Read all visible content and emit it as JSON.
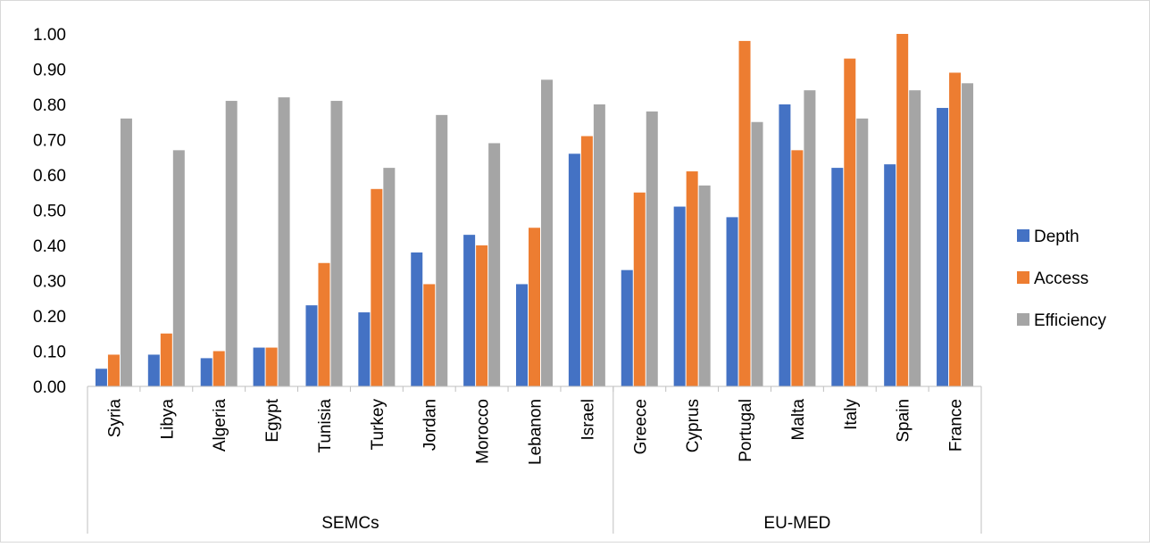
{
  "chart_data": {
    "type": "bar",
    "title": "",
    "xlabel": "",
    "ylabel": "",
    "ylim": [
      0,
      1
    ],
    "y_ticks": [
      "0.00",
      "0.10",
      "0.20",
      "0.30",
      "0.40",
      "0.50",
      "0.60",
      "0.70",
      "0.80",
      "0.90",
      "1.00"
    ],
    "grid": false,
    "legend_position": "right",
    "categories": [
      "Syria",
      "Libya",
      "Algeria",
      "Egypt",
      "Tunisia",
      "Turkey",
      "Jordan",
      "Morocco",
      "Lebanon",
      "Israel",
      "Greece",
      "Cyprus",
      "Portugal",
      "Malta",
      "Italy",
      "Spain",
      "France"
    ],
    "groups": [
      {
        "label": "SEMCs",
        "categories": [
          "Syria",
          "Libya",
          "Algeria",
          "Egypt",
          "Tunisia",
          "Turkey",
          "Jordan",
          "Morocco",
          "Lebanon",
          "Israel"
        ]
      },
      {
        "label": "EU-MED",
        "categories": [
          "Greece",
          "Cyprus",
          "Portugal",
          "Malta",
          "Italy",
          "Spain",
          "France"
        ]
      }
    ],
    "series": [
      {
        "name": "Depth",
        "color": "#4472C4",
        "values": [
          0.05,
          0.09,
          0.08,
          0.11,
          0.23,
          0.21,
          0.38,
          0.43,
          0.29,
          0.66,
          0.33,
          0.51,
          0.48,
          0.8,
          0.62,
          0.63,
          0.79
        ]
      },
      {
        "name": "Access",
        "color": "#ED7D31",
        "values": [
          0.09,
          0.15,
          0.1,
          0.11,
          0.35,
          0.56,
          0.29,
          0.4,
          0.45,
          0.71,
          0.55,
          0.61,
          0.98,
          0.67,
          0.93,
          1.0,
          0.89
        ]
      },
      {
        "name": "Efficiency",
        "color": "#A5A5A5",
        "values": [
          0.76,
          0.67,
          0.81,
          0.82,
          0.81,
          0.62,
          0.77,
          0.69,
          0.87,
          0.8,
          0.78,
          0.57,
          0.75,
          0.84,
          0.76,
          0.84,
          0.86
        ]
      }
    ]
  }
}
